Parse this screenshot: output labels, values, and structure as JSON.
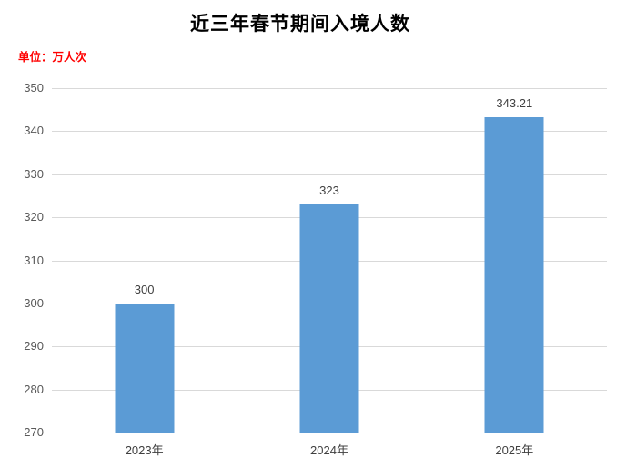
{
  "title": "近三年春节期间入境人数",
  "unit_label": "单位：万人次",
  "colors": {
    "bar": "#5b9bd5",
    "unit_text": "#ff0000",
    "gridline": "#d9d9d9",
    "axis_tick_label": "#595959",
    "category_label": "#404040",
    "value_label": "#404040",
    "title_text": "#000000",
    "background": "#ffffff"
  },
  "chart_data": {
    "type": "bar",
    "title": "近三年春节期间入境人数",
    "subtitle": "单位：万人次",
    "categories": [
      "2023年",
      "2024年",
      "2025年"
    ],
    "values": [
      300,
      323,
      343.21
    ],
    "value_labels": [
      "300",
      "323",
      "343.21"
    ],
    "series_color": "#5b9bd5",
    "xlabel": "",
    "ylabel": "万人次",
    "ylim": [
      270,
      350
    ],
    "yticks": [
      350,
      340,
      330,
      320,
      310,
      300,
      290,
      280,
      270
    ],
    "grid": true,
    "legend": false,
    "legend_position": "none"
  }
}
